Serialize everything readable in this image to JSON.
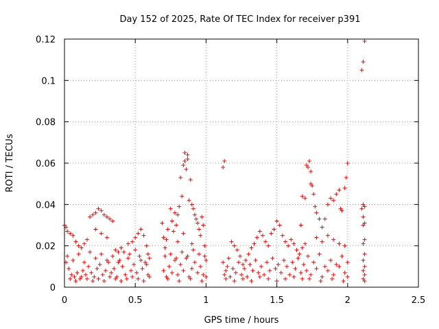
{
  "chart_data": {
    "type": "scatter",
    "title": "Day 152 of 2025, Rate Of TEC Index for receiver p391",
    "xlabel": "GPS time / hours",
    "ylabel": "ROTI / TECUs",
    "xlim": [
      0,
      2.5
    ],
    "ylim": [
      0,
      0.12
    ],
    "x_ticks": [
      0,
      0.5,
      1,
      1.5,
      2,
      2.5
    ],
    "x_tick_labels": [
      "0",
      "0.5",
      "1",
      "1.5",
      "2",
      "2.5"
    ],
    "y_ticks": [
      0,
      0.02,
      0.04,
      0.06,
      0.08,
      0.1,
      0.12
    ],
    "y_tick_labels": [
      "0",
      "0.02",
      "0.04",
      "0.06",
      "0.08",
      "0.1",
      "0.12"
    ],
    "grid": true,
    "marker": "plus",
    "color": "#ff0000",
    "series": [
      {
        "name": "ROTI",
        "points": [
          [
            0.0,
            0.03
          ],
          [
            0.01,
            0.029
          ],
          [
            0.02,
            0.027
          ],
          [
            0.04,
            0.026
          ],
          [
            0.06,
            0.025
          ],
          [
            0.08,
            0.022
          ],
          [
            0.1,
            0.02
          ],
          [
            0.12,
            0.019
          ],
          [
            0.14,
            0.021
          ],
          [
            0.16,
            0.023
          ],
          [
            0.18,
            0.034
          ],
          [
            0.2,
            0.035
          ],
          [
            0.22,
            0.036
          ],
          [
            0.24,
            0.038
          ],
          [
            0.26,
            0.037
          ],
          [
            0.28,
            0.035
          ],
          [
            0.3,
            0.034
          ],
          [
            0.32,
            0.033
          ],
          [
            0.34,
            0.032
          ],
          [
            0.22,
            0.028
          ],
          [
            0.26,
            0.026
          ],
          [
            0.3,
            0.024
          ],
          [
            0.36,
            0.018
          ],
          [
            0.38,
            0.017
          ],
          [
            0.4,
            0.019
          ],
          [
            0.45,
            0.021
          ],
          [
            0.48,
            0.022
          ],
          [
            0.5,
            0.024
          ],
          [
            0.52,
            0.026
          ],
          [
            0.54,
            0.028
          ],
          [
            0.56,
            0.025
          ],
          [
            0.58,
            0.02
          ],
          [
            0.59,
            0.016
          ],
          [
            0.6,
            0.014
          ],
          [
            0.01,
            0.012
          ],
          [
            0.03,
            0.009
          ],
          [
            0.05,
            0.006
          ],
          [
            0.07,
            0.005
          ],
          [
            0.09,
            0.007
          ],
          [
            0.11,
            0.004
          ],
          [
            0.13,
            0.008
          ],
          [
            0.15,
            0.006
          ],
          [
            0.17,
            0.01
          ],
          [
            0.19,
            0.007
          ],
          [
            0.21,
            0.005
          ],
          [
            0.23,
            0.009
          ],
          [
            0.25,
            0.011
          ],
          [
            0.27,
            0.006
          ],
          [
            0.29,
            0.008
          ],
          [
            0.31,
            0.012
          ],
          [
            0.33,
            0.007
          ],
          [
            0.35,
            0.009
          ],
          [
            0.37,
            0.005
          ],
          [
            0.39,
            0.013
          ],
          [
            0.41,
            0.01
          ],
          [
            0.43,
            0.006
          ],
          [
            0.45,
            0.014
          ],
          [
            0.47,
            0.008
          ],
          [
            0.49,
            0.011
          ],
          [
            0.51,
            0.007
          ],
          [
            0.53,
            0.015
          ],
          [
            0.55,
            0.009
          ],
          [
            0.57,
            0.012
          ],
          [
            0.59,
            0.006
          ],
          [
            0.02,
            0.015
          ],
          [
            0.06,
            0.013
          ],
          [
            0.1,
            0.016
          ],
          [
            0.14,
            0.012
          ],
          [
            0.18,
            0.017
          ],
          [
            0.22,
            0.014
          ],
          [
            0.26,
            0.016
          ],
          [
            0.3,
            0.013
          ],
          [
            0.34,
            0.015
          ],
          [
            0.38,
            0.012
          ],
          [
            0.42,
            0.017
          ],
          [
            0.46,
            0.016
          ],
          [
            0.5,
            0.018
          ],
          [
            0.54,
            0.013
          ],
          [
            0.58,
            0.011
          ],
          [
            0.04,
            0.004
          ],
          [
            0.08,
            0.003
          ],
          [
            0.12,
            0.005
          ],
          [
            0.16,
            0.004
          ],
          [
            0.2,
            0.003
          ],
          [
            0.24,
            0.004
          ],
          [
            0.28,
            0.003
          ],
          [
            0.32,
            0.005
          ],
          [
            0.36,
            0.004
          ],
          [
            0.4,
            0.003
          ],
          [
            0.44,
            0.004
          ],
          [
            0.48,
            0.005
          ],
          [
            0.52,
            0.004
          ],
          [
            0.56,
            0.003
          ],
          [
            0.6,
            0.005
          ],
          [
            0.69,
            0.031
          ],
          [
            0.7,
            0.024
          ],
          [
            0.71,
            0.019
          ],
          [
            0.72,
            0.023
          ],
          [
            0.73,
            0.028
          ],
          [
            0.75,
            0.038
          ],
          [
            0.76,
            0.032
          ],
          [
            0.77,
            0.027
          ],
          [
            0.78,
            0.036
          ],
          [
            0.79,
            0.03
          ],
          [
            0.8,
            0.035
          ],
          [
            0.81,
            0.039
          ],
          [
            0.82,
            0.053
          ],
          [
            0.83,
            0.044
          ],
          [
            0.84,
            0.059
          ],
          [
            0.85,
            0.061
          ],
          [
            0.85,
            0.065
          ],
          [
            0.87,
            0.064
          ],
          [
            0.87,
            0.062
          ],
          [
            0.86,
            0.057
          ],
          [
            0.89,
            0.052
          ],
          [
            0.88,
            0.042
          ],
          [
            0.9,
            0.04
          ],
          [
            0.91,
            0.038
          ],
          [
            0.92,
            0.035
          ],
          [
            0.93,
            0.033
          ],
          [
            0.94,
            0.031
          ],
          [
            0.95,
            0.028
          ],
          [
            0.96,
            0.025
          ],
          [
            0.97,
            0.034
          ],
          [
            0.98,
            0.03
          ],
          [
            0.99,
            0.02
          ],
          [
            0.8,
            0.022
          ],
          [
            0.84,
            0.026
          ],
          [
            0.9,
            0.021
          ],
          [
            0.7,
            0.008
          ],
          [
            0.72,
            0.005
          ],
          [
            0.74,
            0.01
          ],
          [
            0.76,
            0.007
          ],
          [
            0.78,
            0.013
          ],
          [
            0.8,
            0.006
          ],
          [
            0.82,
            0.011
          ],
          [
            0.84,
            0.008
          ],
          [
            0.86,
            0.014
          ],
          [
            0.88,
            0.005
          ],
          [
            0.9,
            0.009
          ],
          [
            0.92,
            0.012
          ],
          [
            0.94,
            0.007
          ],
          [
            0.96,
            0.01
          ],
          [
            0.98,
            0.006
          ],
          [
            1.0,
            0.013
          ],
          [
            0.71,
            0.015
          ],
          [
            0.75,
            0.016
          ],
          [
            0.79,
            0.014
          ],
          [
            0.83,
            0.017
          ],
          [
            0.87,
            0.015
          ],
          [
            0.91,
            0.018
          ],
          [
            0.95,
            0.016
          ],
          [
            0.99,
            0.015
          ],
          [
            0.73,
            0.004
          ],
          [
            0.81,
            0.003
          ],
          [
            0.89,
            0.004
          ],
          [
            0.97,
            0.003
          ],
          [
            1.0,
            0.005
          ],
          [
            1.12,
            0.058
          ],
          [
            1.13,
            0.061
          ],
          [
            1.12,
            0.012
          ],
          [
            1.14,
            0.008
          ],
          [
            1.16,
            0.014
          ],
          [
            1.18,
            0.022
          ],
          [
            1.2,
            0.02
          ],
          [
            1.22,
            0.018
          ],
          [
            1.24,
            0.015
          ],
          [
            1.26,
            0.011
          ],
          [
            1.28,
            0.013
          ],
          [
            1.3,
            0.016
          ],
          [
            1.32,
            0.019
          ],
          [
            1.34,
            0.021
          ],
          [
            1.36,
            0.024
          ],
          [
            1.38,
            0.027
          ],
          [
            1.4,
            0.025
          ],
          [
            1.42,
            0.022
          ],
          [
            1.44,
            0.02
          ],
          [
            1.46,
            0.026
          ],
          [
            1.48,
            0.028
          ],
          [
            1.5,
            0.032
          ],
          [
            1.52,
            0.03
          ],
          [
            1.54,
            0.025
          ],
          [
            1.56,
            0.022
          ],
          [
            1.58,
            0.02
          ],
          [
            1.6,
            0.023
          ],
          [
            1.62,
            0.021
          ],
          [
            1.64,
            0.018
          ],
          [
            1.66,
            0.016
          ],
          [
            1.68,
            0.019
          ],
          [
            1.7,
            0.021
          ],
          [
            1.13,
            0.006
          ],
          [
            1.15,
            0.01
          ],
          [
            1.17,
            0.005
          ],
          [
            1.19,
            0.009
          ],
          [
            1.21,
            0.007
          ],
          [
            1.23,
            0.012
          ],
          [
            1.25,
            0.006
          ],
          [
            1.27,
            0.009
          ],
          [
            1.29,
            0.005
          ],
          [
            1.31,
            0.011
          ],
          [
            1.33,
            0.008
          ],
          [
            1.35,
            0.013
          ],
          [
            1.37,
            0.007
          ],
          [
            1.39,
            0.01
          ],
          [
            1.41,
            0.006
          ],
          [
            1.43,
            0.012
          ],
          [
            1.45,
            0.008
          ],
          [
            1.47,
            0.014
          ],
          [
            1.49,
            0.009
          ],
          [
            1.51,
            0.011
          ],
          [
            1.53,
            0.007
          ],
          [
            1.55,
            0.013
          ],
          [
            1.57,
            0.01
          ],
          [
            1.59,
            0.006
          ],
          [
            1.61,
            0.012
          ],
          [
            1.63,
            0.009
          ],
          [
            1.65,
            0.014
          ],
          [
            1.67,
            0.007
          ],
          [
            1.69,
            0.011
          ],
          [
            1.71,
            0.008
          ],
          [
            1.14,
            0.004
          ],
          [
            1.2,
            0.003
          ],
          [
            1.26,
            0.004
          ],
          [
            1.32,
            0.003
          ],
          [
            1.38,
            0.005
          ],
          [
            1.44,
            0.004
          ],
          [
            1.5,
            0.003
          ],
          [
            1.56,
            0.004
          ],
          [
            1.62,
            0.005
          ],
          [
            1.68,
            0.004
          ],
          [
            1.67,
            0.03
          ],
          [
            1.68,
            0.044
          ],
          [
            1.7,
            0.043
          ],
          [
            1.71,
            0.059
          ],
          [
            1.72,
            0.058
          ],
          [
            1.73,
            0.061
          ],
          [
            1.74,
            0.056
          ],
          [
            1.74,
            0.05
          ],
          [
            1.75,
            0.049
          ],
          [
            1.76,
            0.045
          ],
          [
            1.77,
            0.039
          ],
          [
            1.78,
            0.036
          ],
          [
            1.8,
            0.033
          ],
          [
            1.82,
            0.029
          ],
          [
            1.84,
            0.033
          ],
          [
            1.86,
            0.04
          ],
          [
            1.88,
            0.043
          ],
          [
            1.9,
            0.042
          ],
          [
            1.92,
            0.045
          ],
          [
            1.94,
            0.047
          ],
          [
            1.95,
            0.038
          ],
          [
            1.96,
            0.037
          ],
          [
            1.98,
            0.048
          ],
          [
            1.99,
            0.053
          ],
          [
            2.0,
            0.06
          ],
          [
            1.78,
            0.024
          ],
          [
            1.82,
            0.022
          ],
          [
            1.86,
            0.025
          ],
          [
            1.9,
            0.023
          ],
          [
            1.94,
            0.021
          ],
          [
            1.98,
            0.02
          ],
          [
            1.72,
            0.015
          ],
          [
            1.76,
            0.012
          ],
          [
            1.8,
            0.016
          ],
          [
            1.84,
            0.01
          ],
          [
            1.88,
            0.013
          ],
          [
            1.92,
            0.011
          ],
          [
            1.96,
            0.015
          ],
          [
            2.0,
            0.012
          ],
          [
            1.74,
            0.006
          ],
          [
            1.78,
            0.009
          ],
          [
            1.82,
            0.005
          ],
          [
            1.86,
            0.008
          ],
          [
            1.9,
            0.006
          ],
          [
            1.94,
            0.01
          ],
          [
            1.98,
            0.007
          ],
          [
            2.0,
            0.005
          ],
          [
            1.73,
            0.004
          ],
          [
            1.81,
            0.003
          ],
          [
            1.89,
            0.004
          ],
          [
            1.97,
            0.003
          ],
          [
            2.1,
            0.105
          ],
          [
            2.11,
            0.109
          ],
          [
            2.12,
            0.119
          ],
          [
            2.11,
            0.04
          ],
          [
            2.12,
            0.039
          ],
          [
            2.1,
            0.038
          ],
          [
            2.11,
            0.034
          ],
          [
            2.12,
            0.031
          ],
          [
            2.11,
            0.03
          ],
          [
            2.12,
            0.023
          ],
          [
            2.11,
            0.021
          ],
          [
            2.12,
            0.016
          ],
          [
            2.11,
            0.013
          ],
          [
            2.12,
            0.01
          ],
          [
            2.11,
            0.008
          ],
          [
            2.12,
            0.006
          ],
          [
            2.11,
            0.004
          ],
          [
            2.12,
            0.003
          ]
        ]
      }
    ]
  }
}
